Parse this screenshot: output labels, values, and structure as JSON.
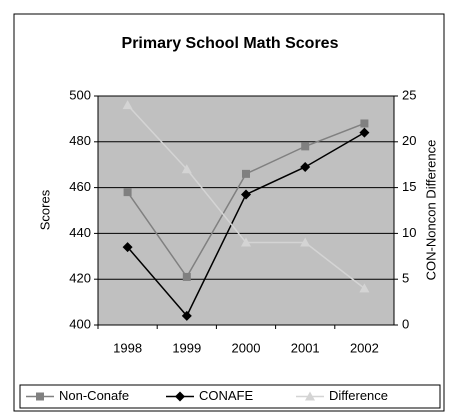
{
  "chart_data": {
    "type": "line",
    "title": "Primary School Math Scores",
    "ylabel": "Scores",
    "y2label": "CON-Noncon Difference",
    "categories": [
      "1998",
      "1999",
      "2000",
      "2001",
      "2002"
    ],
    "series": [
      {
        "name": "Non-Conafe",
        "color": "#808080",
        "marker": "square",
        "values": [
          458,
          421,
          466,
          478,
          488
        ]
      },
      {
        "name": "CONAFE",
        "color": "#000000",
        "marker": "diamond",
        "values": [
          434,
          404,
          457,
          469,
          484
        ]
      },
      {
        "name": "Difference",
        "color": "#d4d4d4",
        "marker": "triangle",
        "axis": "y2",
        "values": [
          24,
          17,
          9,
          9,
          4
        ]
      }
    ],
    "ylim": [
      400,
      500
    ],
    "yticks": [
      400,
      420,
      440,
      460,
      480,
      500
    ],
    "y2lim": [
      0,
      25
    ],
    "y2ticks": [
      0,
      5,
      10,
      15,
      20,
      25
    ],
    "grid": true,
    "legend": "bottom",
    "plot_background": "#c0c0c0"
  }
}
